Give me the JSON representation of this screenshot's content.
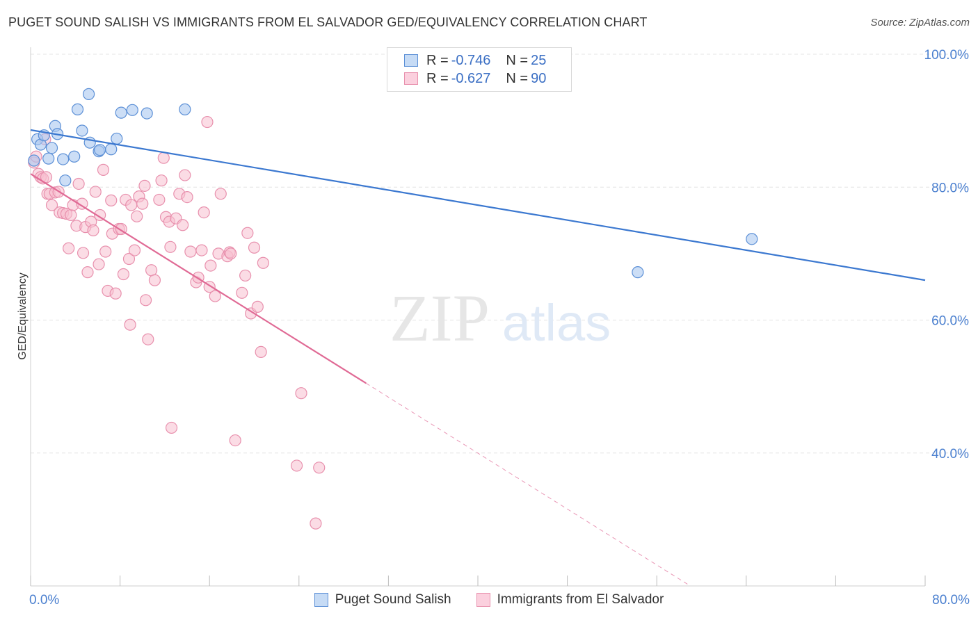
{
  "header": {
    "title": "PUGET SOUND SALISH VS IMMIGRANTS FROM EL SALVADOR GED/EQUIVALENCY CORRELATION CHART",
    "source": "Source: ZipAtlas.com"
  },
  "legend": {
    "rows": [
      {
        "r_label": "R = ",
        "r_value": "-0.746",
        "n_label": "N = ",
        "n_value": "25"
      },
      {
        "r_label": "R = ",
        "r_value": "-0.627",
        "n_label": "N = ",
        "n_value": "90"
      }
    ]
  },
  "watermark": {
    "part1": "ZIP",
    "part2": "atlas"
  },
  "colors": {
    "blue_fill": "#aac8f0",
    "blue_stroke": "#5b8fd6",
    "blue_line": "#3b78d0",
    "pink_fill": "#f7bfd0",
    "pink_stroke": "#e890ad",
    "pink_line": "#e06a95",
    "tick_label": "#4a7fcf",
    "grid": "#e4e4e4"
  },
  "chart_data": {
    "type": "scatter",
    "xlabel": "",
    "ylabel": "GED/Equivalency",
    "xlim": [
      0,
      80
    ],
    "ylim": [
      20,
      100
    ],
    "x_tick_labels": [
      {
        "value": 0,
        "label": "0.0%"
      },
      {
        "value": 80,
        "label": "80.0%"
      }
    ],
    "y_tick_labels": [
      {
        "value": 100,
        "label": "100.0%"
      },
      {
        "value": 80,
        "label": "80.0%"
      },
      {
        "value": 60,
        "label": "60.0%"
      },
      {
        "value": 40,
        "label": "40.0%"
      }
    ],
    "grid": true,
    "legend_position": "top-center",
    "series": [
      {
        "name": "Puget Sound Salish",
        "color": "blue",
        "points": [
          [
            0.3,
            84.0
          ],
          [
            0.6,
            87.2
          ],
          [
            0.9,
            86.4
          ],
          [
            1.2,
            87.8
          ],
          [
            1.6,
            84.3
          ],
          [
            1.9,
            85.9
          ],
          [
            2.2,
            89.2
          ],
          [
            2.4,
            88.0
          ],
          [
            2.9,
            84.2
          ],
          [
            3.1,
            81.0
          ],
          [
            3.9,
            84.6
          ],
          [
            4.2,
            91.7
          ],
          [
            4.6,
            88.5
          ],
          [
            5.3,
            86.7
          ],
          [
            5.2,
            94.0
          ],
          [
            6.1,
            85.4
          ],
          [
            6.2,
            85.6
          ],
          [
            7.2,
            85.7
          ],
          [
            7.7,
            87.3
          ],
          [
            8.1,
            91.2
          ],
          [
            9.1,
            91.6
          ],
          [
            10.4,
            91.1
          ],
          [
            13.8,
            91.7
          ],
          [
            54.3,
            67.2
          ],
          [
            64.5,
            72.2
          ]
        ],
        "trend": {
          "x": [
            0,
            80
          ],
          "y": [
            88.6,
            66.0
          ]
        }
      },
      {
        "name": "Immigrants from El Salvador",
        "color": "pink",
        "points": [
          [
            0.3,
            83.7
          ],
          [
            0.5,
            84.6
          ],
          [
            0.7,
            82.0
          ],
          [
            0.9,
            81.5
          ],
          [
            1.1,
            81.3
          ],
          [
            1.3,
            87.2
          ],
          [
            1.4,
            81.5
          ],
          [
            1.5,
            79.0
          ],
          [
            1.7,
            79.0
          ],
          [
            1.9,
            77.3
          ],
          [
            2.2,
            79.2
          ],
          [
            2.5,
            79.3
          ],
          [
            2.6,
            76.2
          ],
          [
            2.9,
            76.1
          ],
          [
            3.2,
            76.0
          ],
          [
            3.4,
            70.8
          ],
          [
            3.6,
            75.8
          ],
          [
            3.8,
            77.3
          ],
          [
            4.1,
            74.2
          ],
          [
            4.3,
            80.5
          ],
          [
            4.6,
            77.5
          ],
          [
            4.7,
            70.1
          ],
          [
            4.9,
            74.0
          ],
          [
            5.1,
            67.2
          ],
          [
            5.4,
            74.8
          ],
          [
            5.6,
            73.5
          ],
          [
            5.8,
            79.3
          ],
          [
            6.1,
            68.4
          ],
          [
            6.2,
            75.8
          ],
          [
            6.5,
            82.6
          ],
          [
            6.7,
            70.3
          ],
          [
            6.9,
            64.4
          ],
          [
            7.2,
            78.0
          ],
          [
            7.3,
            73.0
          ],
          [
            7.6,
            64.0
          ],
          [
            7.9,
            73.7
          ],
          [
            8.1,
            73.7
          ],
          [
            8.3,
            66.9
          ],
          [
            8.5,
            78.1
          ],
          [
            8.8,
            69.2
          ],
          [
            8.9,
            59.3
          ],
          [
            9.0,
            77.3
          ],
          [
            9.3,
            70.5
          ],
          [
            9.5,
            75.6
          ],
          [
            9.7,
            78.6
          ],
          [
            10.0,
            77.5
          ],
          [
            10.2,
            80.2
          ],
          [
            10.3,
            63.0
          ],
          [
            10.5,
            57.1
          ],
          [
            10.8,
            67.5
          ],
          [
            11.1,
            66.0
          ],
          [
            11.5,
            78.1
          ],
          [
            11.7,
            81.0
          ],
          [
            11.9,
            84.4
          ],
          [
            12.1,
            75.5
          ],
          [
            12.4,
            74.8
          ],
          [
            12.5,
            71.0
          ],
          [
            12.6,
            43.8
          ],
          [
            13.0,
            75.3
          ],
          [
            13.3,
            79.0
          ],
          [
            13.6,
            74.3
          ],
          [
            13.8,
            81.8
          ],
          [
            14.0,
            78.5
          ],
          [
            14.3,
            70.3
          ],
          [
            14.8,
            65.7
          ],
          [
            15.0,
            66.4
          ],
          [
            15.3,
            70.5
          ],
          [
            15.5,
            76.2
          ],
          [
            15.8,
            89.8
          ],
          [
            16.1,
            68.2
          ],
          [
            16.5,
            63.6
          ],
          [
            16.8,
            70.0
          ],
          [
            17.0,
            79.0
          ],
          [
            17.6,
            69.6
          ],
          [
            17.8,
            70.2
          ],
          [
            17.9,
            70.0
          ],
          [
            18.3,
            41.9
          ],
          [
            18.9,
            64.1
          ],
          [
            19.2,
            66.7
          ],
          [
            19.4,
            73.1
          ],
          [
            19.7,
            61.0
          ],
          [
            20.0,
            70.9
          ],
          [
            20.3,
            62.0
          ],
          [
            20.6,
            55.2
          ],
          [
            20.8,
            68.6
          ],
          [
            23.8,
            38.1
          ],
          [
            24.2,
            49.0
          ],
          [
            25.5,
            29.4
          ],
          [
            25.8,
            37.8
          ],
          [
            16.0,
            65.0
          ]
        ],
        "trend": {
          "x": [
            0,
            30
          ],
          "y": [
            82.0,
            50.5
          ]
        },
        "trend_dashed": {
          "x": [
            30,
            59
          ],
          "y": [
            50.5,
            20.0
          ]
        }
      }
    ]
  }
}
